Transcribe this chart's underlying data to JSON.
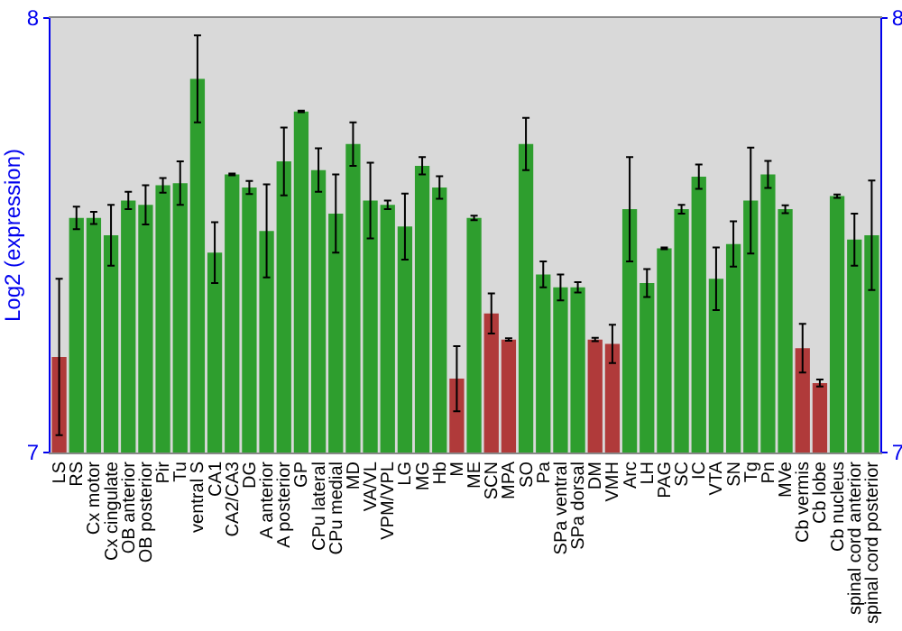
{
  "chart_data": {
    "type": "bar",
    "ylabel": "Log2 (expression)",
    "categories": [
      "LS",
      "RS",
      "Cx motor",
      "Cx cingulate",
      "OB anterior",
      "OB posterior",
      "Pir",
      "Tu",
      "ventral S",
      "CA1",
      "CA2/CA3",
      "DG",
      "A anterior",
      "A posterior",
      "GP",
      "CPu lateral",
      "CPu medial",
      "MD",
      "VA/VL",
      "VPM/VPL",
      "LG",
      "MG",
      "Hb",
      "M",
      "ME",
      "SCN",
      "MPA",
      "SO",
      "Pa",
      "SPa ventral",
      "SPa dorsal",
      "DM",
      "VMH",
      "Arc",
      "LH",
      "PAG",
      "SC",
      "IC",
      "VTA",
      "SN",
      "Tg",
      "Pn",
      "MVe",
      "Cb vermis",
      "Cb lobe",
      "Cb nucleus",
      "spinal cord anterior",
      "spinal cord posterior"
    ],
    "values": [
      7.22,
      7.54,
      7.54,
      7.5,
      7.58,
      7.57,
      7.615,
      7.62,
      7.86,
      7.46,
      7.64,
      7.61,
      7.51,
      7.67,
      7.785,
      7.65,
      7.55,
      7.71,
      7.58,
      7.57,
      7.52,
      7.66,
      7.61,
      7.17,
      7.54,
      7.32,
      7.26,
      7.71,
      7.41,
      7.38,
      7.38,
      7.26,
      7.25,
      7.56,
      7.39,
      7.47,
      7.56,
      7.635,
      7.4,
      7.48,
      7.58,
      7.64,
      7.56,
      7.24,
      7.16,
      7.59,
      7.49,
      7.5
    ],
    "errors": [
      0.18,
      0.026,
      0.014,
      0.07,
      0.02,
      0.045,
      0.017,
      0.05,
      0.1,
      0.07,
      0.002,
      0.015,
      0.107,
      0.078,
      0.002,
      0.05,
      0.09,
      0.05,
      0.087,
      0.01,
      0.076,
      0.02,
      0.026,
      0.075,
      0.005,
      0.046,
      0.003,
      0.06,
      0.03,
      0.03,
      0.012,
      0.004,
      0.044,
      0.12,
      0.032,
      0.002,
      0.01,
      0.028,
      0.072,
      0.052,
      0.122,
      0.031,
      0.009,
      0.056,
      0.008,
      0.004,
      0.06,
      0.126
    ],
    "colors": [
      "#b03a3a",
      "#2e9e2e",
      "#2e9e2e",
      "#2e9e2e",
      "#2e9e2e",
      "#2e9e2e",
      "#2e9e2e",
      "#2e9e2e",
      "#2e9e2e",
      "#2e9e2e",
      "#2e9e2e",
      "#2e9e2e",
      "#2e9e2e",
      "#2e9e2e",
      "#2e9e2e",
      "#2e9e2e",
      "#2e9e2e",
      "#2e9e2e",
      "#2e9e2e",
      "#2e9e2e",
      "#2e9e2e",
      "#2e9e2e",
      "#2e9e2e",
      "#b03a3a",
      "#2e9e2e",
      "#b03a3a",
      "#b03a3a",
      "#2e9e2e",
      "#2e9e2e",
      "#2e9e2e",
      "#2e9e2e",
      "#b03a3a",
      "#b03a3a",
      "#2e9e2e",
      "#2e9e2e",
      "#2e9e2e",
      "#2e9e2e",
      "#2e9e2e",
      "#2e9e2e",
      "#2e9e2e",
      "#2e9e2e",
      "#2e9e2e",
      "#2e9e2e",
      "#b03a3a",
      "#b03a3a",
      "#2e9e2e",
      "#2e9e2e",
      "#2e9e2e"
    ],
    "ylim": [
      7,
      8
    ],
    "yticks": [
      7,
      8
    ],
    "y2lim": [
      7,
      8
    ],
    "y2ticks": [
      7,
      8
    ]
  }
}
